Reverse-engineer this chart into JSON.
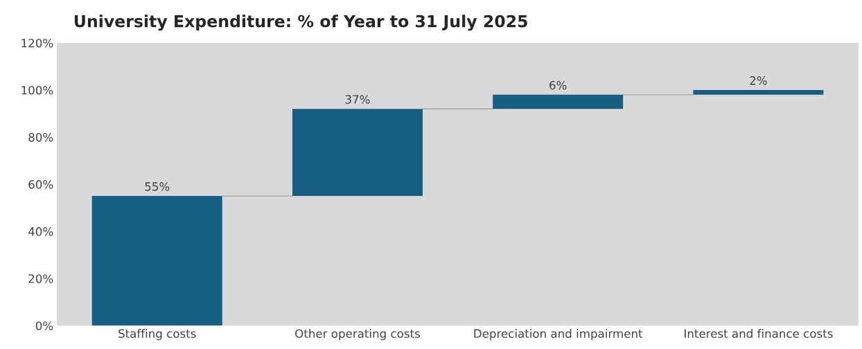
{
  "chart_data": {
    "type": "bar",
    "title": "University Expenditure: % of Year to 31 July 2025",
    "categories": [
      "Staffing costs",
      "Other operating costs",
      "Depreciation and impairment",
      "Interest and finance costs"
    ],
    "values": [
      55,
      37,
      6,
      2
    ],
    "base": [
      0,
      55,
      92,
      98
    ],
    "color": "#175f82",
    "value_labels": [
      "55%",
      "37%",
      "6%",
      "2%"
    ],
    "ylim": [
      0,
      120
    ],
    "yticks": [
      {
        "value": 0,
        "label": "0%"
      },
      {
        "value": 20,
        "label": "20%"
      },
      {
        "value": 40,
        "label": "40%"
      },
      {
        "value": 60,
        "label": "60%"
      },
      {
        "value": 80,
        "label": "80%"
      },
      {
        "value": 100,
        "label": "100%"
      },
      {
        "value": 120,
        "label": "120%"
      }
    ],
    "grid": false,
    "legend": false
  }
}
